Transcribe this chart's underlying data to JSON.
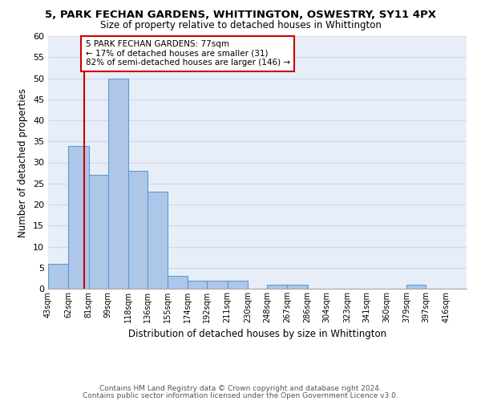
{
  "title1": "5, PARK FECHAN GARDENS, WHITTINGTON, OSWESTRY, SY11 4PX",
  "title2": "Size of property relative to detached houses in Whittington",
  "xlabel": "Distribution of detached houses by size in Whittington",
  "ylabel": "Number of detached properties",
  "bin_labels": [
    "43sqm",
    "62sqm",
    "81sqm",
    "99sqm",
    "118sqm",
    "136sqm",
    "155sqm",
    "174sqm",
    "192sqm",
    "211sqm",
    "230sqm",
    "248sqm",
    "267sqm",
    "286sqm",
    "304sqm",
    "323sqm",
    "341sqm",
    "360sqm",
    "379sqm",
    "397sqm",
    "416sqm"
  ],
  "bin_edges": [
    43,
    62,
    81,
    99,
    118,
    136,
    155,
    174,
    192,
    211,
    230,
    248,
    267,
    286,
    304,
    323,
    341,
    360,
    379,
    397,
    416
  ],
  "bar_heights": [
    6,
    34,
    27,
    50,
    28,
    23,
    3,
    2,
    2,
    2,
    0,
    1,
    1,
    0,
    0,
    0,
    0,
    0,
    1,
    0,
    0
  ],
  "bar_color": "#aec6e8",
  "bar_edge_color": "#5b9bd5",
  "property_size": 77,
  "annotation_text": "5 PARK FECHAN GARDENS: 77sqm\n← 17% of detached houses are smaller (31)\n82% of semi-detached houses are larger (146) →",
  "annotation_box_color": "#ffffff",
  "annotation_border_color": "#cc0000",
  "vline_color": "#cc0000",
  "ylim": [
    0,
    60
  ],
  "yticks": [
    0,
    5,
    10,
    15,
    20,
    25,
    30,
    35,
    40,
    45,
    50,
    55,
    60
  ],
  "grid_color": "#d0d8e8",
  "bg_color": "#e8eef8",
  "footer1": "Contains HM Land Registry data © Crown copyright and database right 2024.",
  "footer2": "Contains public sector information licensed under the Open Government Licence v3.0."
}
